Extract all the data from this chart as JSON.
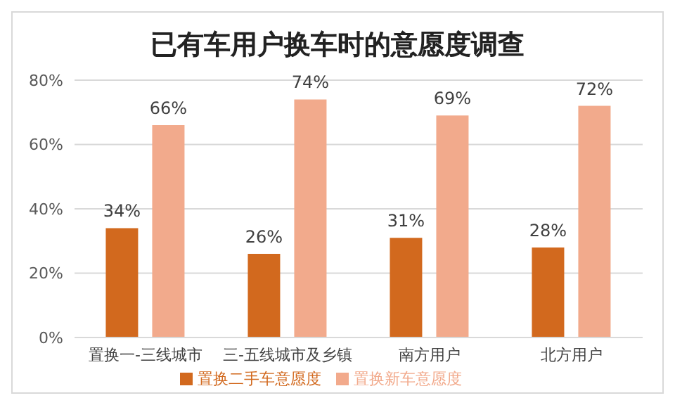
{
  "chart_data": {
    "type": "bar",
    "title": "已有车用户换车时的意愿度调查",
    "categories": [
      "置换一-三线城市",
      "三-五线城市及乡镇",
      "南方用户",
      "北方用户"
    ],
    "series": [
      {
        "name": "置换二手车意愿度",
        "color": "#d2691e",
        "values": [
          34,
          26,
          31,
          28
        ],
        "value_labels": [
          "34%",
          "26%",
          "31%",
          "28%"
        ]
      },
      {
        "name": "置换新车意愿度",
        "color": "#f2aa8c",
        "values": [
          66,
          74,
          69,
          72
        ],
        "value_labels": [
          "66%",
          "74%",
          "69%",
          "72%"
        ]
      }
    ],
    "ylim": [
      0,
      80
    ],
    "yticks": [
      {
        "value": 0,
        "label": "0%"
      },
      {
        "value": 20,
        "label": "20%"
      },
      {
        "value": 40,
        "label": "40%"
      },
      {
        "value": 60,
        "label": "60%"
      },
      {
        "value": 80,
        "label": "80%"
      }
    ],
    "grid": "y",
    "legend": "bottom"
  }
}
